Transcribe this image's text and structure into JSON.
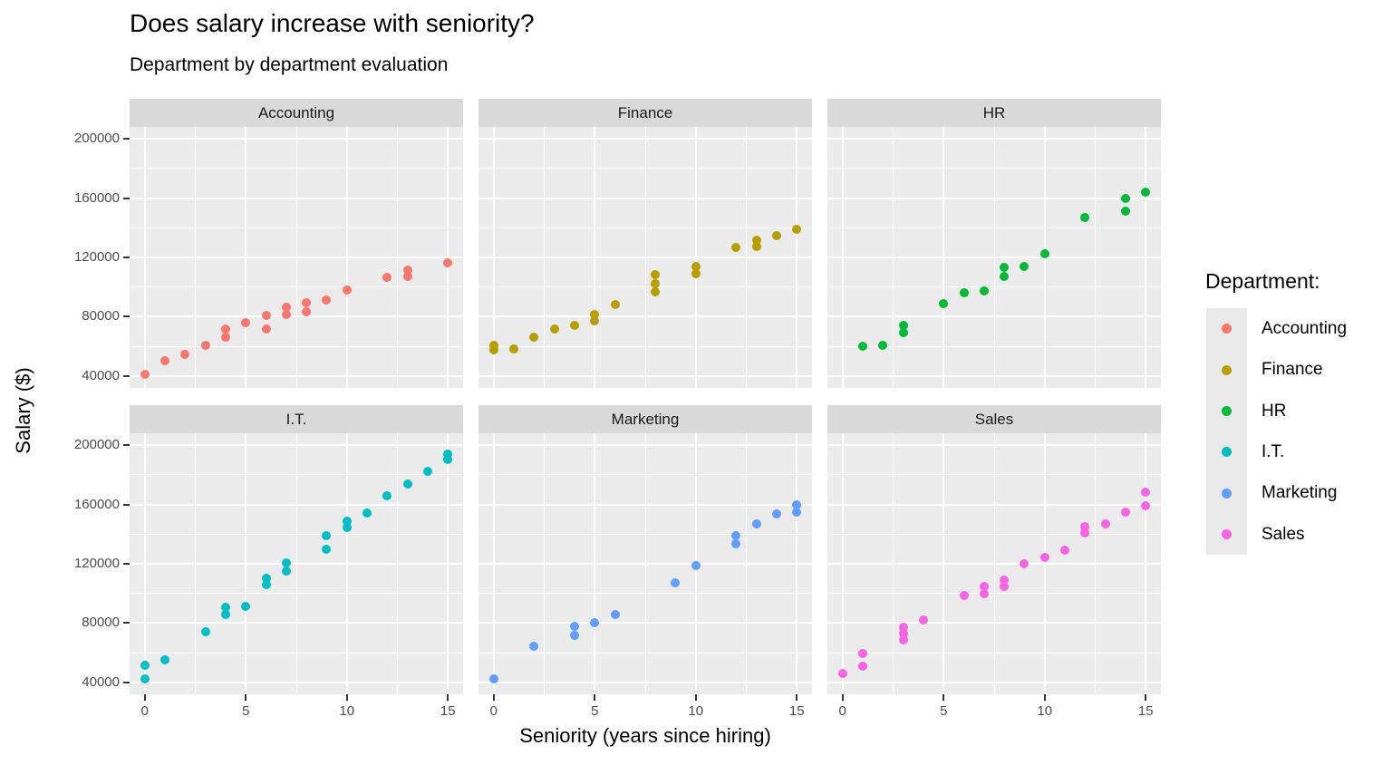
{
  "title": "Does salary increase with seniority?",
  "subtitle": "Department by department evaluation",
  "axes": {
    "x_title": "Seniority (years since hiring)",
    "y_title": "Salary ($)",
    "x_tick_labels": [
      "0",
      "5",
      "10",
      "15"
    ],
    "y_tick_labels": [
      "200000",
      "160000",
      "120000",
      "80000",
      "40000"
    ]
  },
  "legend": {
    "title": "Department:",
    "items": [
      {
        "label": "Accounting",
        "color": "#F8766D"
      },
      {
        "label": "Finance",
        "color": "#B79F00"
      },
      {
        "label": "HR",
        "color": "#00BA38"
      },
      {
        "label": "I.T.",
        "color": "#00BFC4"
      },
      {
        "label": "Marketing",
        "color": "#619CFF"
      },
      {
        "label": "Sales",
        "color": "#F564E3"
      }
    ]
  },
  "theme": {
    "panel_bg": "#EBEBEB",
    "strip_bg": "#D9D9D9",
    "gridline": "#FFFFFF",
    "tick_label_color": "#4D4D4D",
    "text_color": "#000000",
    "legend_key_bg": "#E9E9E9"
  },
  "chart_data": {
    "type": "scatter",
    "title": "Does salary increase with seniority?",
    "subtitle": "Department by department evaluation",
    "xlabel": "Seniority (years since hiring)",
    "ylabel": "Salary ($)",
    "legend_title": "Department:",
    "legend_position": "right",
    "grid": true,
    "facet_layout": [
      3,
      2
    ],
    "xlim": [
      -0.75,
      15.75
    ],
    "ylim": [
      32000,
      208000
    ],
    "x_ticks": [
      0,
      5,
      10,
      15
    ],
    "y_ticks": [
      40000,
      80000,
      120000,
      160000,
      200000
    ],
    "x_minor": [
      2.5,
      7.5,
      12.5
    ],
    "y_minor": [
      60000,
      100000,
      140000,
      180000
    ],
    "facets": [
      {
        "label": "Accounting",
        "color": "#F8766D",
        "points": [
          [
            0,
            41000
          ],
          [
            1,
            50500
          ],
          [
            2,
            54500
          ],
          [
            3,
            60500
          ],
          [
            4,
            66000
          ],
          [
            4,
            72000
          ],
          [
            5,
            76000
          ],
          [
            6,
            72000
          ],
          [
            6,
            81000
          ],
          [
            7,
            81500
          ],
          [
            7,
            86500
          ],
          [
            8,
            83500
          ],
          [
            8,
            89500
          ],
          [
            9,
            91000
          ],
          [
            10,
            98000
          ],
          [
            12,
            106500
          ],
          [
            13,
            107000
          ],
          [
            13,
            111500
          ],
          [
            15,
            116500
          ]
        ]
      },
      {
        "label": "Finance",
        "color": "#B79F00",
        "points": [
          [
            0,
            57500
          ],
          [
            0,
            60500
          ],
          [
            1,
            58000
          ],
          [
            2,
            66000
          ],
          [
            3,
            72000
          ],
          [
            4,
            74000
          ],
          [
            5,
            77000
          ],
          [
            5,
            81500
          ],
          [
            6,
            88000
          ],
          [
            8,
            96500
          ],
          [
            8,
            102500
          ],
          [
            8,
            108500
          ],
          [
            10,
            109000
          ],
          [
            10,
            114000
          ],
          [
            12,
            126500
          ],
          [
            13,
            127500
          ],
          [
            13,
            131500
          ],
          [
            14,
            134500
          ],
          [
            15,
            139000
          ]
        ]
      },
      {
        "label": "HR",
        "color": "#00BA38",
        "points": [
          [
            1,
            60000
          ],
          [
            2,
            61000
          ],
          [
            3,
            69000
          ],
          [
            3,
            74000
          ],
          [
            5,
            89000
          ],
          [
            6,
            96000
          ],
          [
            7,
            97500
          ],
          [
            8,
            107000
          ],
          [
            8,
            113500
          ],
          [
            9,
            114000
          ],
          [
            10,
            122500
          ],
          [
            12,
            147000
          ],
          [
            14,
            151000
          ],
          [
            14,
            159500
          ],
          [
            15,
            164000
          ]
        ]
      },
      {
        "label": "I.T.",
        "color": "#00BFC4",
        "points": [
          [
            0,
            42500
          ],
          [
            0,
            51500
          ],
          [
            1,
            55500
          ],
          [
            3,
            74000
          ],
          [
            4,
            86000
          ],
          [
            4,
            90500
          ],
          [
            5,
            91500
          ],
          [
            6,
            106000
          ],
          [
            6,
            110000
          ],
          [
            7,
            115000
          ],
          [
            7,
            120500
          ],
          [
            9,
            129500
          ],
          [
            9,
            139000
          ],
          [
            10,
            144500
          ],
          [
            10,
            148500
          ],
          [
            11,
            154500
          ],
          [
            12,
            166000
          ],
          [
            13,
            173500
          ],
          [
            14,
            182500
          ],
          [
            15,
            190500
          ],
          [
            15,
            194000
          ]
        ]
      },
      {
        "label": "Marketing",
        "color": "#619CFF",
        "points": [
          [
            0,
            42500
          ],
          [
            2,
            64500
          ],
          [
            4,
            72000
          ],
          [
            4,
            78000
          ],
          [
            5,
            80000
          ],
          [
            6,
            86000
          ],
          [
            9,
            107000
          ],
          [
            10,
            119000
          ],
          [
            12,
            133500
          ],
          [
            12,
            139000
          ],
          [
            13,
            147000
          ],
          [
            14,
            153500
          ],
          [
            15,
            155000
          ],
          [
            15,
            160000
          ]
        ]
      },
      {
        "label": "Sales",
        "color": "#F564E3",
        "points": [
          [
            0,
            46000
          ],
          [
            1,
            51000
          ],
          [
            1,
            59500
          ],
          [
            3,
            68500
          ],
          [
            3,
            73000
          ],
          [
            3,
            77500
          ],
          [
            4,
            82000
          ],
          [
            6,
            98500
          ],
          [
            7,
            100000
          ],
          [
            7,
            105000
          ],
          [
            8,
            104500
          ],
          [
            8,
            109000
          ],
          [
            9,
            120000
          ],
          [
            10,
            124000
          ],
          [
            11,
            129000
          ],
          [
            12,
            140500
          ],
          [
            12,
            145000
          ],
          [
            13,
            147000
          ],
          [
            14,
            155000
          ],
          [
            15,
            159000
          ],
          [
            15,
            168500
          ]
        ]
      }
    ]
  }
}
